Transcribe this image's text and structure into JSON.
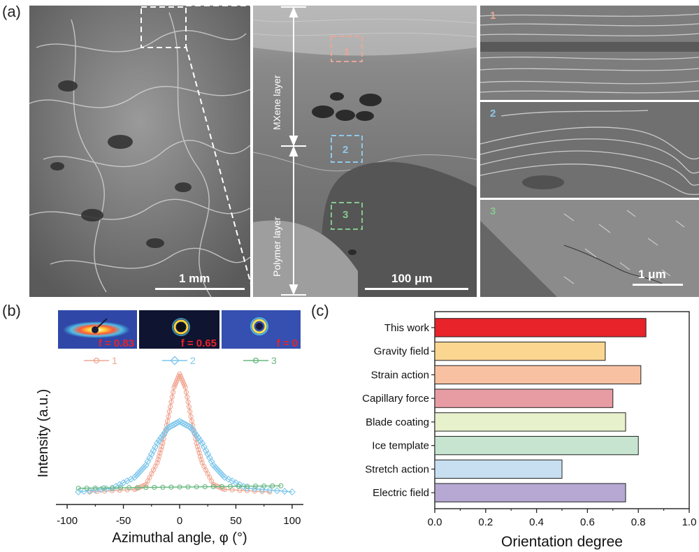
{
  "panel_a": {
    "label": "(a)",
    "scale_left": "1 mm",
    "scale_middle": "100 μm",
    "scale_right": "1 μm",
    "mxene_layer": "MXene layer",
    "polymer_layer": "Polymer layer",
    "region_markers": [
      "1",
      "2",
      "3"
    ],
    "inset_labels": [
      "1",
      "2",
      "3"
    ],
    "colors": {
      "region1": "#e8a798",
      "region2": "#8fc8ea",
      "region3": "#86c78f"
    }
  },
  "panel_b": {
    "label": "(b)",
    "saxs_labels": [
      "f = 0.83",
      "f = 0.65",
      "f = 0"
    ],
    "xlabel": "Azimuthal angle, φ (°)",
    "ylabel": "Intensity (a.u.)",
    "xticks": [
      "-100",
      "-50",
      "0",
      "50",
      "100"
    ],
    "legend": [
      "1",
      "2",
      "3"
    ]
  },
  "panel_c": {
    "label": "(c)"
  },
  "chart_data": [
    {
      "type": "line",
      "xlabel": "Azimuthal angle, φ (°)",
      "ylabel": "Intensity (a.u.)",
      "xlim": [
        -110,
        110
      ],
      "series": [
        {
          "name": "1",
          "color": "#f0a692",
          "x": [
            -80,
            -40,
            -30,
            -20,
            -15,
            -10,
            -5,
            0,
            5,
            10,
            15,
            20,
            30,
            40,
            80
          ],
          "y": [
            0.0,
            0.02,
            0.06,
            0.24,
            0.4,
            0.62,
            0.86,
            0.97,
            0.86,
            0.62,
            0.4,
            0.24,
            0.06,
            0.02,
            0.0
          ]
        },
        {
          "name": "2",
          "color": "#7cc6ec",
          "x": [
            -90,
            -60,
            -40,
            -30,
            -20,
            -10,
            0,
            10,
            20,
            30,
            40,
            60,
            100
          ],
          "y": [
            0.0,
            0.03,
            0.12,
            0.22,
            0.4,
            0.53,
            0.58,
            0.53,
            0.4,
            0.22,
            0.12,
            0.03,
            0.0
          ]
        },
        {
          "name": "3",
          "color": "#66b87f",
          "x": [
            -90,
            -45,
            0,
            45,
            90
          ],
          "y": [
            0.03,
            0.035,
            0.04,
            0.045,
            0.05
          ]
        }
      ]
    },
    {
      "type": "bar",
      "orientation": "horizontal",
      "xlabel": "Orientation degree",
      "xlim": [
        0.0,
        1.0
      ],
      "xticks": [
        "0.0",
        "0.2",
        "0.4",
        "0.6",
        "0.8",
        "1.0"
      ],
      "categories": [
        "This work",
        "Gravity field",
        "Strain action",
        "Capillary force",
        "Blade coating",
        "Ice template",
        "Stretch action",
        "Electric field"
      ],
      "values": [
        0.83,
        0.67,
        0.81,
        0.7,
        0.75,
        0.8,
        0.5,
        0.75
      ],
      "colors": [
        "#e8232a",
        "#fad690",
        "#f8c2a2",
        "#e79ca4",
        "#e7f2cc",
        "#c6e4cf",
        "#c7dff0",
        "#b6a8d3"
      ]
    }
  ]
}
